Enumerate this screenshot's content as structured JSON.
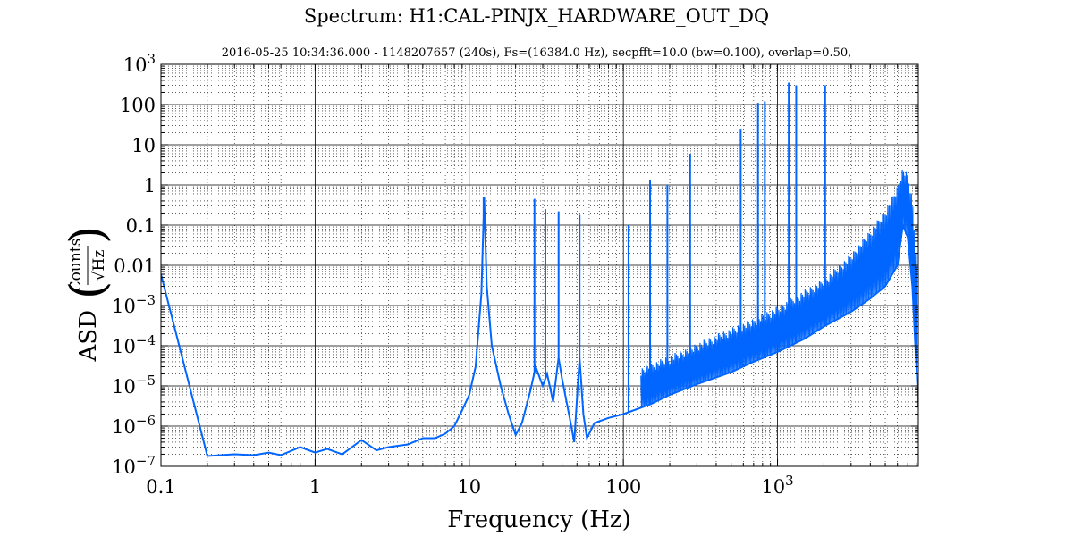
{
  "chart_data": {
    "type": "line",
    "title": "Spectrum: H1:CAL-PINJX_HARDWARE_OUT_DQ",
    "subtitle": "2016-05-25 10:34:36.000 - 1148207657 (240s), Fs=(16384.0 Hz), secpfft=10.0 (bw=0.100), overlap=0.50,",
    "xlabel": "Frequency (Hz)",
    "ylabel_prefix": "ASD",
    "ylabel_unit_numerator": "Counts",
    "ylabel_unit_denominator": "√Hz",
    "xscale": "log",
    "yscale": "log",
    "xlim": [
      0.1,
      8192
    ],
    "ylim": [
      1e-07,
      1000
    ],
    "grid": true,
    "x_tick_labels": [
      {
        "value": 0.1,
        "label": "0.1"
      },
      {
        "value": 1,
        "label": "1"
      },
      {
        "value": 10,
        "label": "10"
      },
      {
        "value": 100,
        "label": "100"
      },
      {
        "value": 1000,
        "label": "10",
        "exp": "3"
      }
    ],
    "y_tick_labels": [
      {
        "value": 1e-07,
        "label": "10",
        "exp": "−7"
      },
      {
        "value": 1e-06,
        "label": "10",
        "exp": "−6"
      },
      {
        "value": 1e-05,
        "label": "10",
        "exp": "−5"
      },
      {
        "value": 0.0001,
        "label": "10",
        "exp": "−4"
      },
      {
        "value": 0.001,
        "label": "10",
        "exp": "−3"
      },
      {
        "value": 0.01,
        "label": "0.01"
      },
      {
        "value": 0.1,
        "label": "0.1"
      },
      {
        "value": 1,
        "label": "1"
      },
      {
        "value": 10,
        "label": "10"
      },
      {
        "value": 100,
        "label": "100"
      },
      {
        "value": 1000,
        "label": "10",
        "exp": "3"
      }
    ],
    "series": [
      {
        "color": "#0066ff",
        "baseline": [
          [
            0.1,
            0.006
          ],
          [
            0.2,
            1.8e-07
          ],
          [
            0.3,
            2e-07
          ],
          [
            0.4,
            1.9e-07
          ],
          [
            0.5,
            2.2e-07
          ],
          [
            0.6,
            1.9e-07
          ],
          [
            0.8,
            3e-07
          ],
          [
            1.0,
            2.2e-07
          ],
          [
            1.2,
            2.7e-07
          ],
          [
            1.5,
            2e-07
          ],
          [
            2.0,
            4.5e-07
          ],
          [
            2.5,
            2.5e-07
          ],
          [
            3.0,
            3e-07
          ],
          [
            4.0,
            3.5e-07
          ],
          [
            5.0,
            5e-07
          ],
          [
            6.0,
            5e-07
          ],
          [
            7.0,
            6.5e-07
          ],
          [
            8.0,
            1e-06
          ],
          [
            9.0,
            2.5e-06
          ],
          [
            10.0,
            6e-06
          ],
          [
            11.0,
            3e-05
          ],
          [
            12.0,
            0.002
          ],
          [
            12.5,
            0.5
          ],
          [
            13.0,
            0.003
          ],
          [
            14.0,
            0.0001
          ],
          [
            16.0,
            1e-05
          ],
          [
            18.0,
            2e-06
          ],
          [
            20.0,
            6e-07
          ],
          [
            22.0,
            1.2e-06
          ],
          [
            25.0,
            8e-06
          ],
          [
            27.0,
            3e-05
          ],
          [
            30.0,
            1e-05
          ],
          [
            32.0,
            2e-05
          ],
          [
            35.0,
            4e-06
          ],
          [
            38.0,
            5e-05
          ],
          [
            40.0,
            1.5e-05
          ],
          [
            45.0,
            1.5e-06
          ],
          [
            48.0,
            4e-07
          ],
          [
            50.0,
            5e-06
          ],
          [
            52.0,
            5e-05
          ],
          [
            55.0,
            2e-06
          ],
          [
            58.0,
            5e-07
          ],
          [
            65.0,
            1.2e-06
          ],
          [
            80.0,
            1.6e-06
          ],
          [
            100.0,
            2e-06
          ],
          [
            150.0,
            3.5e-06
          ],
          [
            200.0,
            6e-06
          ],
          [
            300.0,
            1.1e-05
          ],
          [
            500.0,
            2.2e-05
          ],
          [
            700.0,
            4e-05
          ],
          [
            1000.0,
            7e-05
          ],
          [
            1500.0,
            0.00015
          ],
          [
            2000.0,
            0.0003
          ],
          [
            3000.0,
            0.0007
          ],
          [
            4000.0,
            0.0015
          ],
          [
            5000.0,
            0.003
          ],
          [
            6000.0,
            0.01
          ],
          [
            6500.0,
            0.1
          ],
          [
            7000.0,
            0.05
          ],
          [
            7500.0,
            0.003
          ],
          [
            8000.0,
            2e-05
          ],
          [
            8192.0,
            3e-06
          ]
        ],
        "peaks": [
          [
            12.4,
            0.5
          ],
          [
            26.5,
            0.45
          ],
          [
            31.2,
            0.25
          ],
          [
            38.0,
            0.22
          ],
          [
            52.0,
            0.18
          ],
          [
            108.0,
            0.1
          ],
          [
            149.0,
            1.3
          ],
          [
            193.0,
            1.0
          ],
          [
            271.0,
            6.0
          ],
          [
            577.0,
            25.0
          ],
          [
            747.0,
            110.0
          ],
          [
            827.0,
            120.0
          ],
          [
            1183.0,
            350.0
          ],
          [
            1322.0,
            300.0
          ],
          [
            2037.0,
            300.0
          ]
        ],
        "band_upper": [
          [
            130.0,
            3e-05
          ],
          [
            200.0,
            6e-05
          ],
          [
            400.0,
            0.0002
          ],
          [
            700.0,
            0.0005
          ],
          [
            1000.0,
            0.001
          ],
          [
            2000.0,
            0.005
          ],
          [
            3000.0,
            0.02
          ],
          [
            4000.0,
            0.08
          ],
          [
            5000.0,
            0.25
          ],
          [
            6000.0,
            1.0
          ],
          [
            6500.0,
            3.0
          ],
          [
            7000.0,
            2.0
          ],
          [
            7500.0,
            0.5
          ],
          [
            8000.0,
            0.01
          ]
        ]
      }
    ]
  }
}
